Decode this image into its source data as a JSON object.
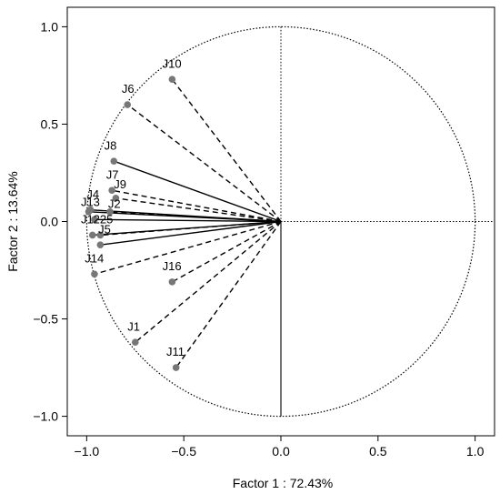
{
  "chart_data": {
    "type": "scatter",
    "title": "",
    "xlabel": "Factor 1 : 72.43%",
    "ylabel": "Factor 2 : 13.64%",
    "xlim": [
      -1.1,
      1.1
    ],
    "ylim": [
      -1.1,
      1.1
    ],
    "x_ticks": [
      -1.0,
      -0.5,
      0.0,
      0.5,
      1.0
    ],
    "y_ticks": [
      -1.0,
      -0.5,
      0.0,
      0.5,
      1.0
    ],
    "x_tick_labels": [
      "−1.0",
      "−0.5",
      "0.0",
      "0.5",
      "1.0"
    ],
    "y_tick_labels": [
      "−1.0",
      "−0.5",
      "0.0",
      "0.5",
      "1.0"
    ],
    "unit_circle": true,
    "reference_lines": {
      "x": 0,
      "y": 0,
      "style": "dotted"
    },
    "points": [
      {
        "label": "J10",
        "x": -0.56,
        "y": 0.73,
        "line": "dashed"
      },
      {
        "label": "J6",
        "x": -0.79,
        "y": 0.6,
        "line": "dashed"
      },
      {
        "label": "J8",
        "x": -0.86,
        "y": 0.31,
        "line": "solid"
      },
      {
        "label": "J7",
        "x": -0.87,
        "y": 0.16,
        "line": "dashed"
      },
      {
        "label": "J9",
        "x": -0.85,
        "y": 0.12,
        "line": "dashed"
      },
      {
        "label": "J2",
        "x": -0.88,
        "y": 0.05,
        "line": "dashed"
      },
      {
        "label": "J13",
        "x": -0.99,
        "y": 0.05,
        "line": "solid"
      },
      {
        "label": "J4",
        "x": -0.98,
        "y": 0.06,
        "line": "solid"
      },
      {
        "label": "J3",
        "x": -0.96,
        "y": 0.01,
        "line": "solid"
      },
      {
        "label": "J12",
        "x": -0.97,
        "y": -0.07,
        "line": "solid"
      },
      {
        "label": "J15",
        "x": -0.93,
        "y": -0.07,
        "line": "dashed"
      },
      {
        "label": "J5",
        "x": -0.93,
        "y": -0.12,
        "line": "solid"
      },
      {
        "label": "J14",
        "x": -0.96,
        "y": -0.27,
        "line": "dashed"
      },
      {
        "label": "J16",
        "x": -0.56,
        "y": -0.31,
        "line": "dashed"
      },
      {
        "label": "J1",
        "x": -0.75,
        "y": -0.62,
        "line": "dashed"
      },
      {
        "label": "J11",
        "x": -0.54,
        "y": -0.75,
        "line": "dashed"
      }
    ],
    "label_texts": [
      {
        "text": "J10",
        "x": -0.61,
        "y": 0.79
      },
      {
        "text": "J6",
        "x": -0.82,
        "y": 0.66
      },
      {
        "text": "J8",
        "x": -0.91,
        "y": 0.37
      },
      {
        "text": "J7",
        "x": -0.9,
        "y": 0.22
      },
      {
        "text": "J9",
        "x": -0.86,
        "y": 0.17
      },
      {
        "text": "J2",
        "x": -0.89,
        "y": 0.07
      },
      {
        "text": "J13",
        "x": -1.03,
        "y": 0.08
      },
      {
        "text": "J4",
        "x": -1.0,
        "y": 0.12
      },
      {
        "text": "J1225",
        "x": -1.03,
        "y": -0.01
      },
      {
        "text": "J5",
        "x": -0.94,
        "y": -0.06
      },
      {
        "text": "J14",
        "x": -1.01,
        "y": -0.21
      },
      {
        "text": "J16",
        "x": -0.61,
        "y": -0.25
      },
      {
        "text": "J1",
        "x": -0.79,
        "y": -0.56
      },
      {
        "text": "J11",
        "x": -0.59,
        "y": -0.69
      }
    ]
  }
}
